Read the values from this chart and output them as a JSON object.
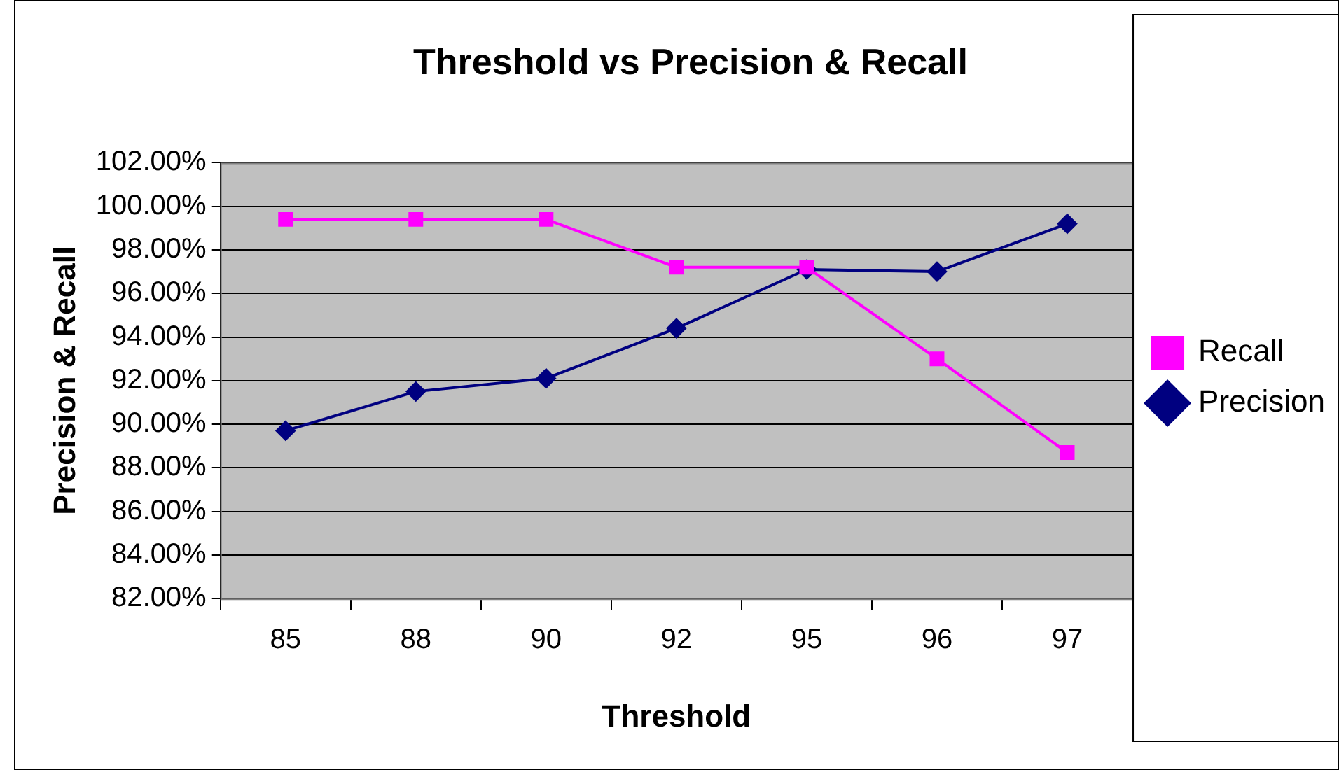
{
  "chart_data": {
    "type": "line",
    "title": "Threshold vs Precision & Recall",
    "xlabel": "Threshold",
    "ylabel": "Precision & Recall",
    "categories": [
      "85",
      "88",
      "90",
      "92",
      "95",
      "96",
      "97"
    ],
    "series": [
      {
        "name": "Precision",
        "color": "#000080",
        "marker": "diamond",
        "values": [
          89.7,
          91.5,
          92.1,
          94.4,
          97.1,
          97.0,
          99.2
        ]
      },
      {
        "name": "Recall",
        "color": "#ff00ff",
        "marker": "square",
        "values": [
          99.4,
          99.4,
          99.4,
          97.2,
          97.2,
          93.0,
          88.7
        ]
      }
    ],
    "ylim": [
      82,
      102
    ],
    "yticks": [
      {
        "value": 82,
        "label": "82.00%"
      },
      {
        "value": 84,
        "label": "84.00%"
      },
      {
        "value": 86,
        "label": "86.00%"
      },
      {
        "value": 88,
        "label": "88.00%"
      },
      {
        "value": 90,
        "label": "90.00%"
      },
      {
        "value": 92,
        "label": "92.00%"
      },
      {
        "value": 94,
        "label": "94.00%"
      },
      {
        "value": 96,
        "label": "96.00%"
      },
      {
        "value": 98,
        "label": "98.00%"
      },
      {
        "value": 100,
        "label": "100.00%"
      },
      {
        "value": 102,
        "label": "102.00%"
      }
    ],
    "grid": "y",
    "legend": "right",
    "line_style": "solid"
  }
}
